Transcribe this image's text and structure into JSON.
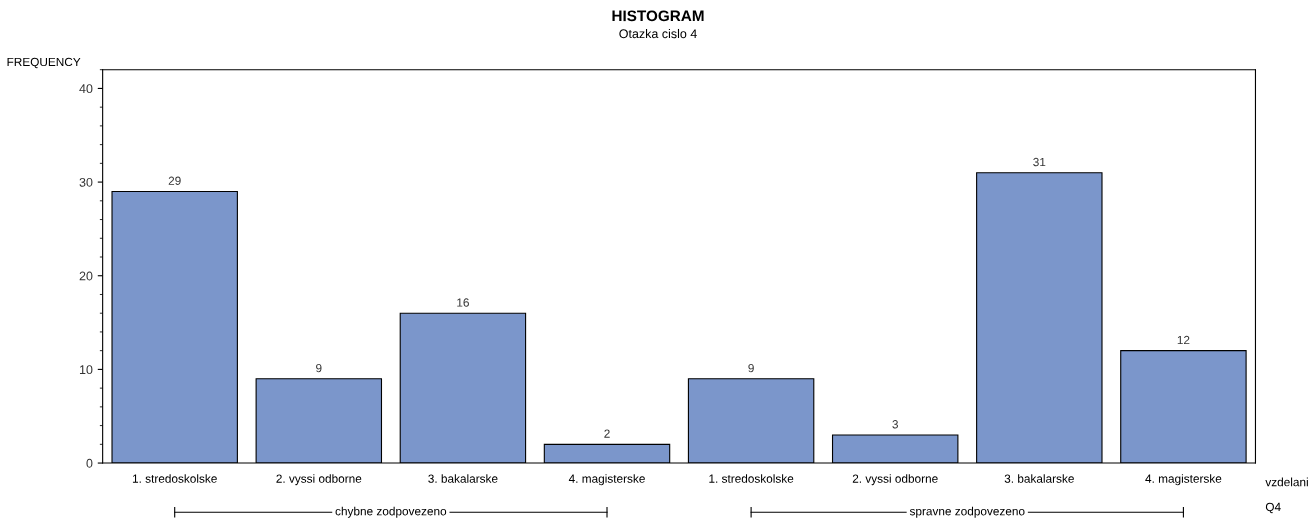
{
  "chart_data": {
    "type": "bar",
    "title": "HISTOGRAM",
    "subtitle": "Otazka cislo 4",
    "ylabel": "FREQUENCY",
    "categories": [
      "1. stredoskolske",
      "2. vyssi odborne",
      "3. bakalarske",
      "4. magisterske",
      "1. stredoskolske",
      "2. vyssi odborne",
      "3. bakalarske",
      "4. magisterske"
    ],
    "values": [
      29,
      9,
      16,
      2,
      9,
      3,
      31,
      12
    ],
    "color": "#7b96cb",
    "ylim": [
      0,
      42
    ],
    "yticks": [
      0,
      10,
      20,
      30,
      40
    ],
    "data_labels": true,
    "grid": false,
    "legend": false,
    "annotations": [
      "chybne zodpovezeno",
      "spravne zodpovezeno",
      "vzdelani",
      "Q4"
    ]
  }
}
